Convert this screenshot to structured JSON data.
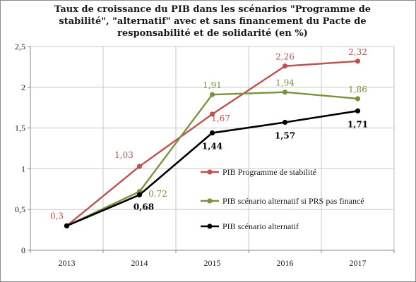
{
  "chart_data": {
    "type": "line",
    "title": "Taux de croissance du PIB dans les scénarios \"Programme de stabilité\", \"alternatif\" avec et sans financement du Pacte de responsabilité et de solidarité (en %)",
    "categories": [
      "2013",
      "2014",
      "2015",
      "2016",
      "2017"
    ],
    "ylim": [
      0,
      2.5
    ],
    "yticks": [
      "0",
      "0,5",
      "1",
      "1,5",
      "2",
      "2,5"
    ],
    "grid": true,
    "legend_position": "inside-right",
    "series": [
      {
        "name": "PIB Programme  de stabilité",
        "color": "#c0504d",
        "values": [
          0.3,
          1.03,
          1.67,
          2.26,
          2.32
        ],
        "labels": [
          "0,3",
          "1,03",
          "1,67",
          "2,26",
          "2,32"
        ]
      },
      {
        "name": "PIB scénario alternatif  si PRS pas financé",
        "color": "#77933c",
        "values": [
          0.3,
          0.72,
          1.91,
          1.94,
          1.86
        ],
        "labels": [
          "",
          "0,72",
          "1,91",
          "1,94",
          "1,86"
        ]
      },
      {
        "name": "PIB scénario alternatif",
        "color": "#000000",
        "values": [
          0.3,
          0.68,
          1.44,
          1.57,
          1.71
        ],
        "labels": [
          "",
          "0,68",
          "1,44",
          "1,57",
          "1,71"
        ]
      }
    ]
  }
}
